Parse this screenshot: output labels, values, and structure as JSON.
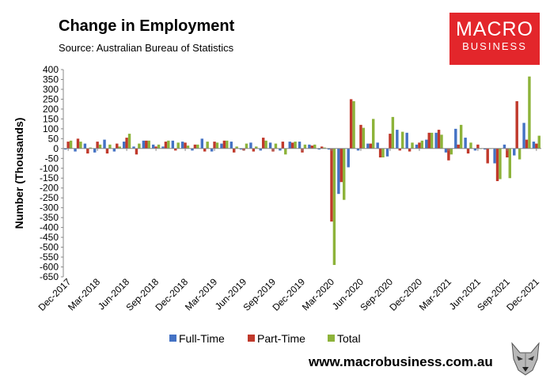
{
  "header": {
    "title": "Change in Employment",
    "subtitle": "Source: Australian Bureau of Statistics"
  },
  "logo": {
    "line1": "MACRO",
    "line2": "BUSINESS",
    "color": "#e3262b"
  },
  "footer": {
    "url": "www.macrobusiness.com.au"
  },
  "chart_data": {
    "type": "bar",
    "title": "Change in Employment",
    "ylabel": "Number (Thousands)",
    "xlabel": "",
    "ylim": [
      -650,
      400
    ],
    "yticks": [
      400,
      350,
      300,
      250,
      200,
      150,
      100,
      50,
      0,
      -50,
      -100,
      -150,
      -200,
      -250,
      -300,
      -350,
      -400,
      -450,
      -500,
      -550,
      -600,
      -650
    ],
    "legend_position": "bottom",
    "grid": false,
    "x_tick_labels": [
      "Dec-2017",
      "Mar-2018",
      "Jun-2018",
      "Sep-2018",
      "Dec-2018",
      "Mar-2019",
      "Jun-2019",
      "Sep-2019",
      "Dec-2019",
      "Mar-2020",
      "Jun-2020",
      "Sep-2020",
      "Dec-2020",
      "Mar-2021",
      "Jun-2021",
      "Sep-2021",
      "Dec-2021"
    ],
    "categories": [
      "Dec-2017",
      "Jan-2018",
      "Feb-2018",
      "Mar-2018",
      "Apr-2018",
      "May-2018",
      "Jun-2018",
      "Jul-2018",
      "Aug-2018",
      "Sep-2018",
      "Oct-2018",
      "Nov-2018",
      "Dec-2018",
      "Jan-2019",
      "Feb-2019",
      "Mar-2019",
      "Apr-2019",
      "May-2019",
      "Jun-2019",
      "Jul-2019",
      "Aug-2019",
      "Sep-2019",
      "Oct-2019",
      "Nov-2019",
      "Dec-2019",
      "Jan-2020",
      "Feb-2020",
      "Mar-2020",
      "Apr-2020",
      "May-2020",
      "Jun-2020",
      "Jul-2020",
      "Aug-2020",
      "Sep-2020",
      "Oct-2020",
      "Nov-2020",
      "Dec-2020",
      "Jan-2021",
      "Feb-2021",
      "Mar-2021",
      "Apr-2021",
      "May-2021",
      "Jun-2021",
      "Jul-2021",
      "Aug-2021",
      "Sep-2021",
      "Oct-2021",
      "Nov-2021",
      "Dec-2021"
    ],
    "series": [
      {
        "name": "Full-Time",
        "color": "#4472c4",
        "values": [
          -5,
          -15,
          25,
          -20,
          45,
          -15,
          35,
          10,
          40,
          20,
          10,
          40,
          35,
          -10,
          50,
          -15,
          25,
          35,
          -5,
          30,
          -10,
          30,
          -10,
          35,
          35,
          20,
          -5,
          -5,
          -230,
          -95,
          -10,
          25,
          30,
          -40,
          95,
          80,
          20,
          45,
          80,
          -20,
          100,
          55,
          -10,
          -5,
          -75,
          20,
          -35,
          130,
          35
        ]
      },
      {
        "name": "Part-Time",
        "color": "#c0392b",
        "values": [
          35,
          50,
          -25,
          35,
          -25,
          25,
          55,
          -30,
          40,
          10,
          35,
          -10,
          30,
          20,
          -15,
          35,
          40,
          -20,
          -10,
          -15,
          55,
          -15,
          35,
          30,
          -20,
          15,
          10,
          -370,
          -170,
          250,
          120,
          25,
          -45,
          75,
          -10,
          -15,
          30,
          80,
          95,
          -60,
          20,
          -25,
          20,
          -75,
          -165,
          -45,
          240,
          45,
          25
        ]
      },
      {
        "name": "Total",
        "color": "#8db33a",
        "values": [
          40,
          35,
          5,
          20,
          20,
          10,
          75,
          25,
          40,
          20,
          40,
          30,
          15,
          20,
          35,
          30,
          40,
          10,
          25,
          10,
          40,
          25,
          -30,
          35,
          20,
          20,
          5,
          -590,
          -260,
          240,
          105,
          150,
          -45,
          160,
          85,
          30,
          40,
          80,
          70,
          -30,
          120,
          30,
          0,
          0,
          -155,
          -150,
          -55,
          365,
          65
        ]
      }
    ]
  }
}
